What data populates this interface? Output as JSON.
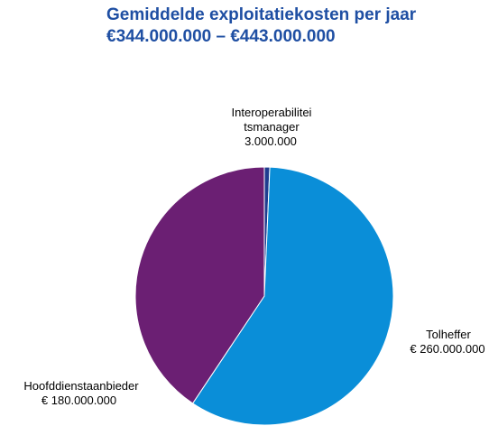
{
  "chart_data": {
    "type": "pie",
    "title": "Gemiddelde exploitatiekosten per jaar",
    "subtitle": "€344.000.000 – €443.000.000",
    "categories": [
      "Interoperabiliteitsmanager",
      "Tolheffer",
      "Hoofddienstaanbieder"
    ],
    "values": [
      3000000,
      260000000,
      180000000
    ],
    "value_labels": [
      "3.000.000",
      "€ 260.000.000",
      "€ 180.000.000"
    ],
    "colors": [
      "#1f3d8f",
      "#0a8ed8",
      "#6b1f73"
    ]
  }
}
